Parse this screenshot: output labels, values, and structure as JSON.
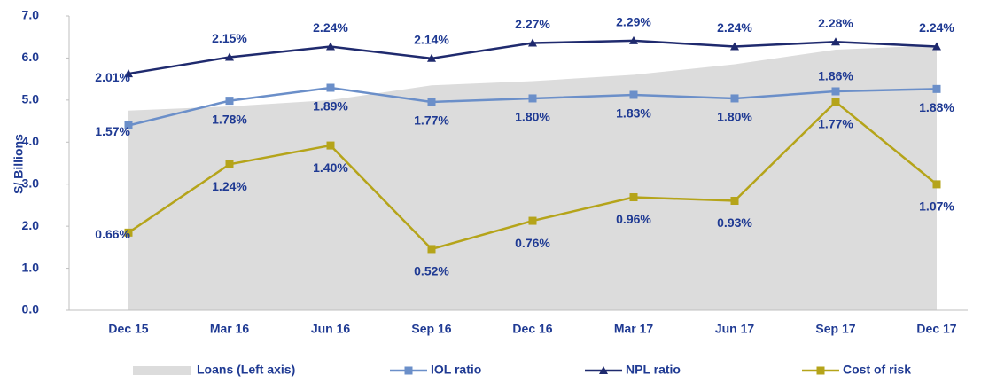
{
  "chart_data": {
    "type": "line",
    "y_label": "S/ Billions",
    "categories": [
      "Dec 15",
      "Mar 16",
      "Jun 16",
      "Sep 16",
      "Dec 16",
      "Mar 17",
      "Jun 17",
      "Sep 17",
      "Dec 17"
    ],
    "ylim": [
      0,
      7
    ],
    "yticks": [
      {
        "value": 0,
        "label": "0.0"
      },
      {
        "value": 1,
        "label": "1.0"
      },
      {
        "value": 2,
        "label": "2.0"
      },
      {
        "value": 3,
        "label": "3.0"
      },
      {
        "value": 4,
        "label": "4.0"
      },
      {
        "value": 5,
        "label": "5.0"
      },
      {
        "value": 6,
        "label": "6.0"
      },
      {
        "value": 7,
        "label": "7.0"
      }
    ],
    "y2lim": [
      0,
      2.5
    ],
    "series": [
      {
        "name": "Loans (Left axis)",
        "kind": "area",
        "color": "#dcdcdc",
        "values": [
          4.75,
          4.85,
          5.0,
          5.35,
          5.45,
          5.6,
          5.85,
          6.2,
          6.3
        ]
      },
      {
        "name": "IOL ratio",
        "kind": "line",
        "marker": "square",
        "axis": "y2",
        "color": "#6b8fc9",
        "values": [
          1.57,
          1.78,
          1.89,
          1.77,
          1.8,
          1.83,
          1.8,
          1.86,
          1.88
        ],
        "value_labels": [
          "1.57%",
          "1.78%",
          "1.89%",
          "1.77%",
          "1.80%",
          "1.83%",
          "1.80%",
          "1.86%",
          "1.88%"
        ]
      },
      {
        "name": "NPL ratio",
        "kind": "line",
        "marker": "triangle",
        "axis": "y2",
        "color": "#1f2a6e",
        "values": [
          2.01,
          2.15,
          2.24,
          2.14,
          2.27,
          2.29,
          2.24,
          2.28,
          2.24
        ],
        "value_labels": [
          "2.01%",
          "2.15%",
          "2.24%",
          "2.14%",
          "2.27%",
          "2.29%",
          "2.24%",
          "2.28%",
          "2.24%"
        ]
      },
      {
        "name": "Cost of risk",
        "kind": "line",
        "marker": "square",
        "axis": "y2",
        "color": "#b5a41a",
        "values": [
          0.66,
          1.24,
          1.4,
          0.52,
          0.76,
          0.96,
          0.93,
          1.77,
          1.07
        ],
        "value_labels": [
          "0.66%",
          "1.24%",
          "1.40%",
          "0.52%",
          "0.76%",
          "0.96%",
          "0.93%",
          "1.77%",
          "1.07%"
        ]
      }
    ]
  }
}
